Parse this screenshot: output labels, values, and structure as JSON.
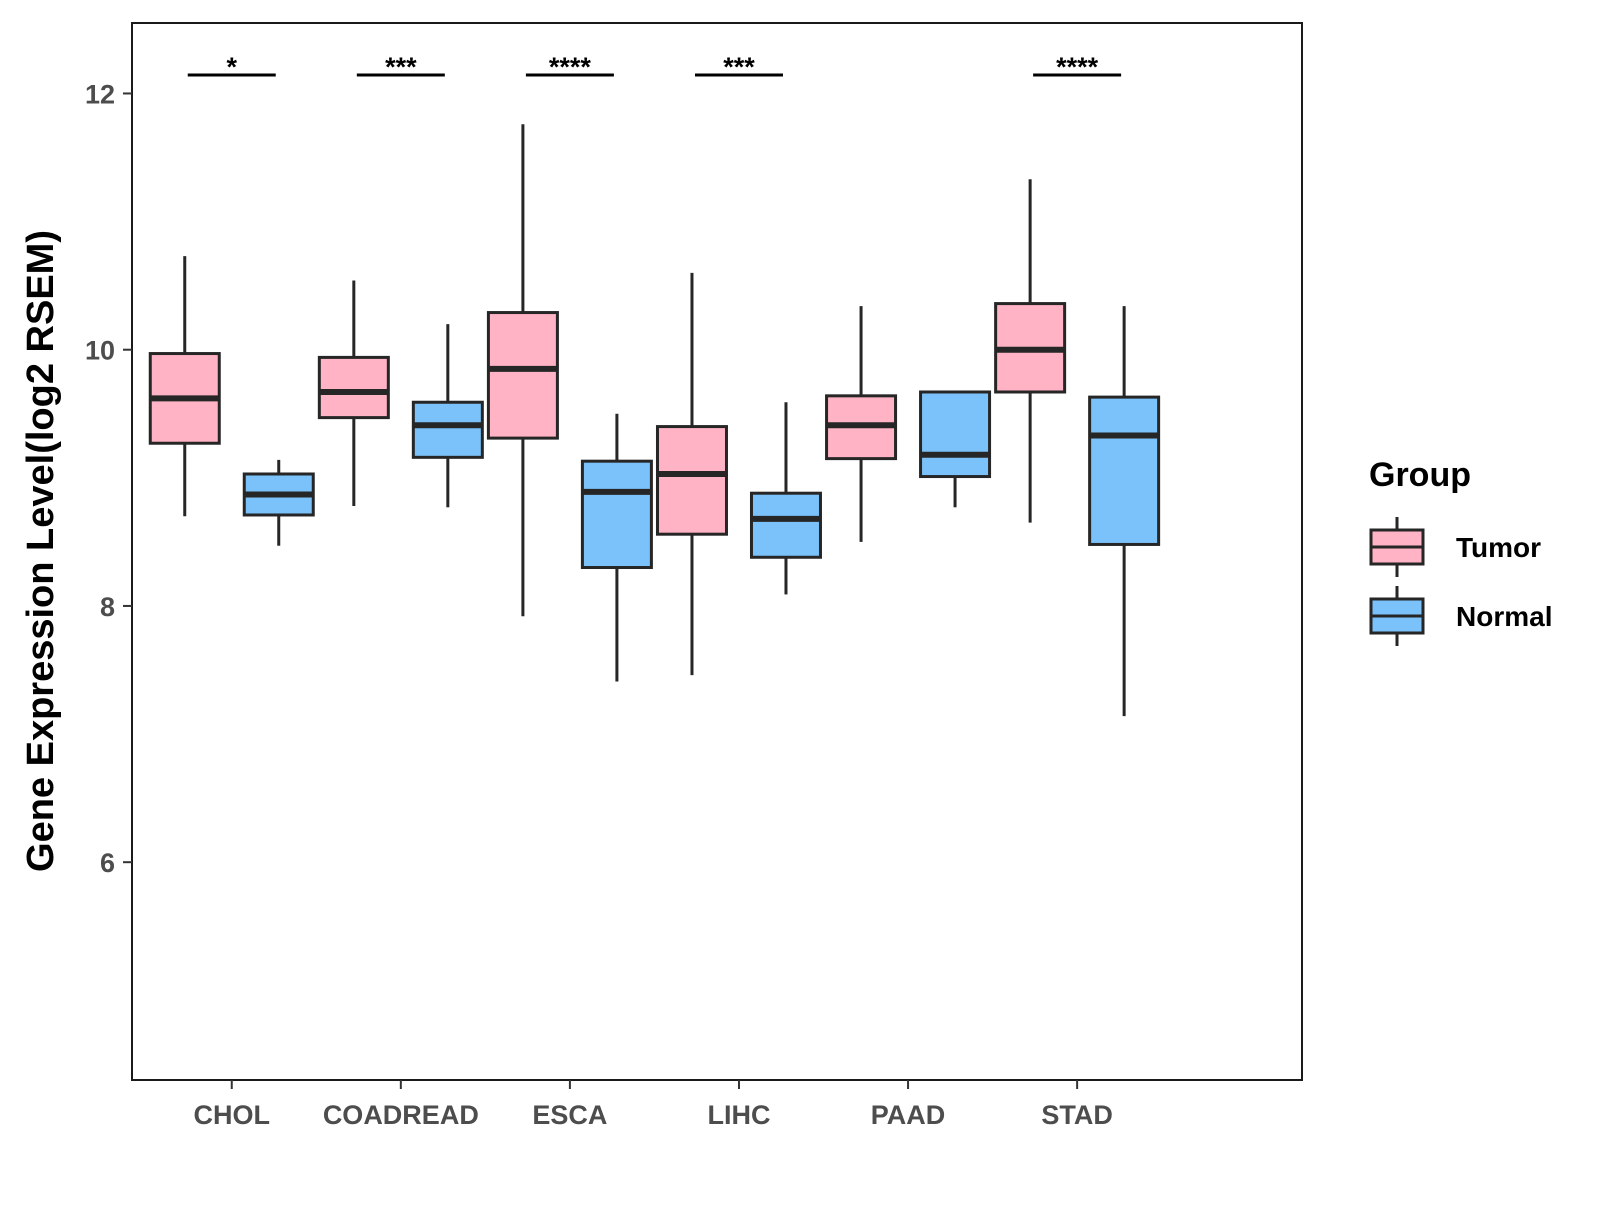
{
  "chart_data": {
    "type": "boxplot",
    "ylabel": "Gene Expression Level(log2 RSEM)",
    "ylim": [
      4.3,
      12.55
    ],
    "yticks": [
      6,
      8,
      10,
      12
    ],
    "categories": [
      "CHOL",
      "COADREAD",
      "ESCA",
      "LIHC",
      "PAAD",
      "STAD"
    ],
    "significance": [
      "*",
      "***",
      "****",
      "***",
      "",
      "****"
    ],
    "grid": false,
    "legend": {
      "title": "Group",
      "placement": "right",
      "entries": [
        "Tumor",
        "Normal"
      ]
    },
    "series": [
      {
        "name": "Tumor",
        "color": "#ffb3c4",
        "boxes": [
          {
            "whisker_low": 8.7,
            "q1": 9.27,
            "median": 9.62,
            "q3": 9.97,
            "whisker_high": 10.73
          },
          {
            "whisker_low": 8.78,
            "q1": 9.47,
            "median": 9.67,
            "q3": 9.94,
            "whisker_high": 10.54
          },
          {
            "whisker_low": 7.92,
            "q1": 9.31,
            "median": 9.85,
            "q3": 10.29,
            "whisker_high": 11.76
          },
          {
            "whisker_low": 7.46,
            "q1": 8.56,
            "median": 9.03,
            "q3": 9.4,
            "whisker_high": 10.6
          },
          {
            "whisker_low": 8.5,
            "q1": 9.15,
            "median": 9.41,
            "q3": 9.64,
            "whisker_high": 10.34
          },
          {
            "whisker_low": 8.65,
            "q1": 9.67,
            "median": 10.0,
            "q3": 10.36,
            "whisker_high": 11.33
          }
        ]
      },
      {
        "name": "Normal",
        "color": "#7ac2f9",
        "boxes": [
          {
            "whisker_low": 8.47,
            "q1": 8.71,
            "median": 8.87,
            "q3": 9.03,
            "whisker_high": 9.14
          },
          {
            "whisker_low": 8.77,
            "q1": 9.16,
            "median": 9.41,
            "q3": 9.59,
            "whisker_high": 10.2
          },
          {
            "whisker_low": 7.41,
            "q1": 8.3,
            "median": 8.89,
            "q3": 9.13,
            "whisker_high": 9.5
          },
          {
            "whisker_low": 8.09,
            "q1": 8.38,
            "median": 8.68,
            "q3": 8.88,
            "whisker_high": 9.59
          },
          {
            "whisker_low": 8.77,
            "q1": 9.01,
            "median": 9.18,
            "q3": 9.67,
            "whisker_high": 9.67
          },
          {
            "whisker_low": 7.14,
            "q1": 8.48,
            "median": 9.33,
            "q3": 9.63,
            "whisker_high": 10.34
          }
        ]
      }
    ]
  }
}
